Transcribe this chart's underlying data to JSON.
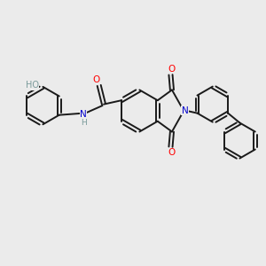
{
  "background_color": "#ebebeb",
  "bond_color": "#1a1a1a",
  "atom_colors": {
    "O": "#ff0000",
    "N": "#0000cc",
    "H_gray": "#7a9a9a",
    "C": "#1a1a1a"
  },
  "figsize": [
    3.0,
    3.0
  ],
  "dpi": 100,
  "xlim": [
    0,
    10
  ],
  "ylim": [
    0,
    10
  ]
}
